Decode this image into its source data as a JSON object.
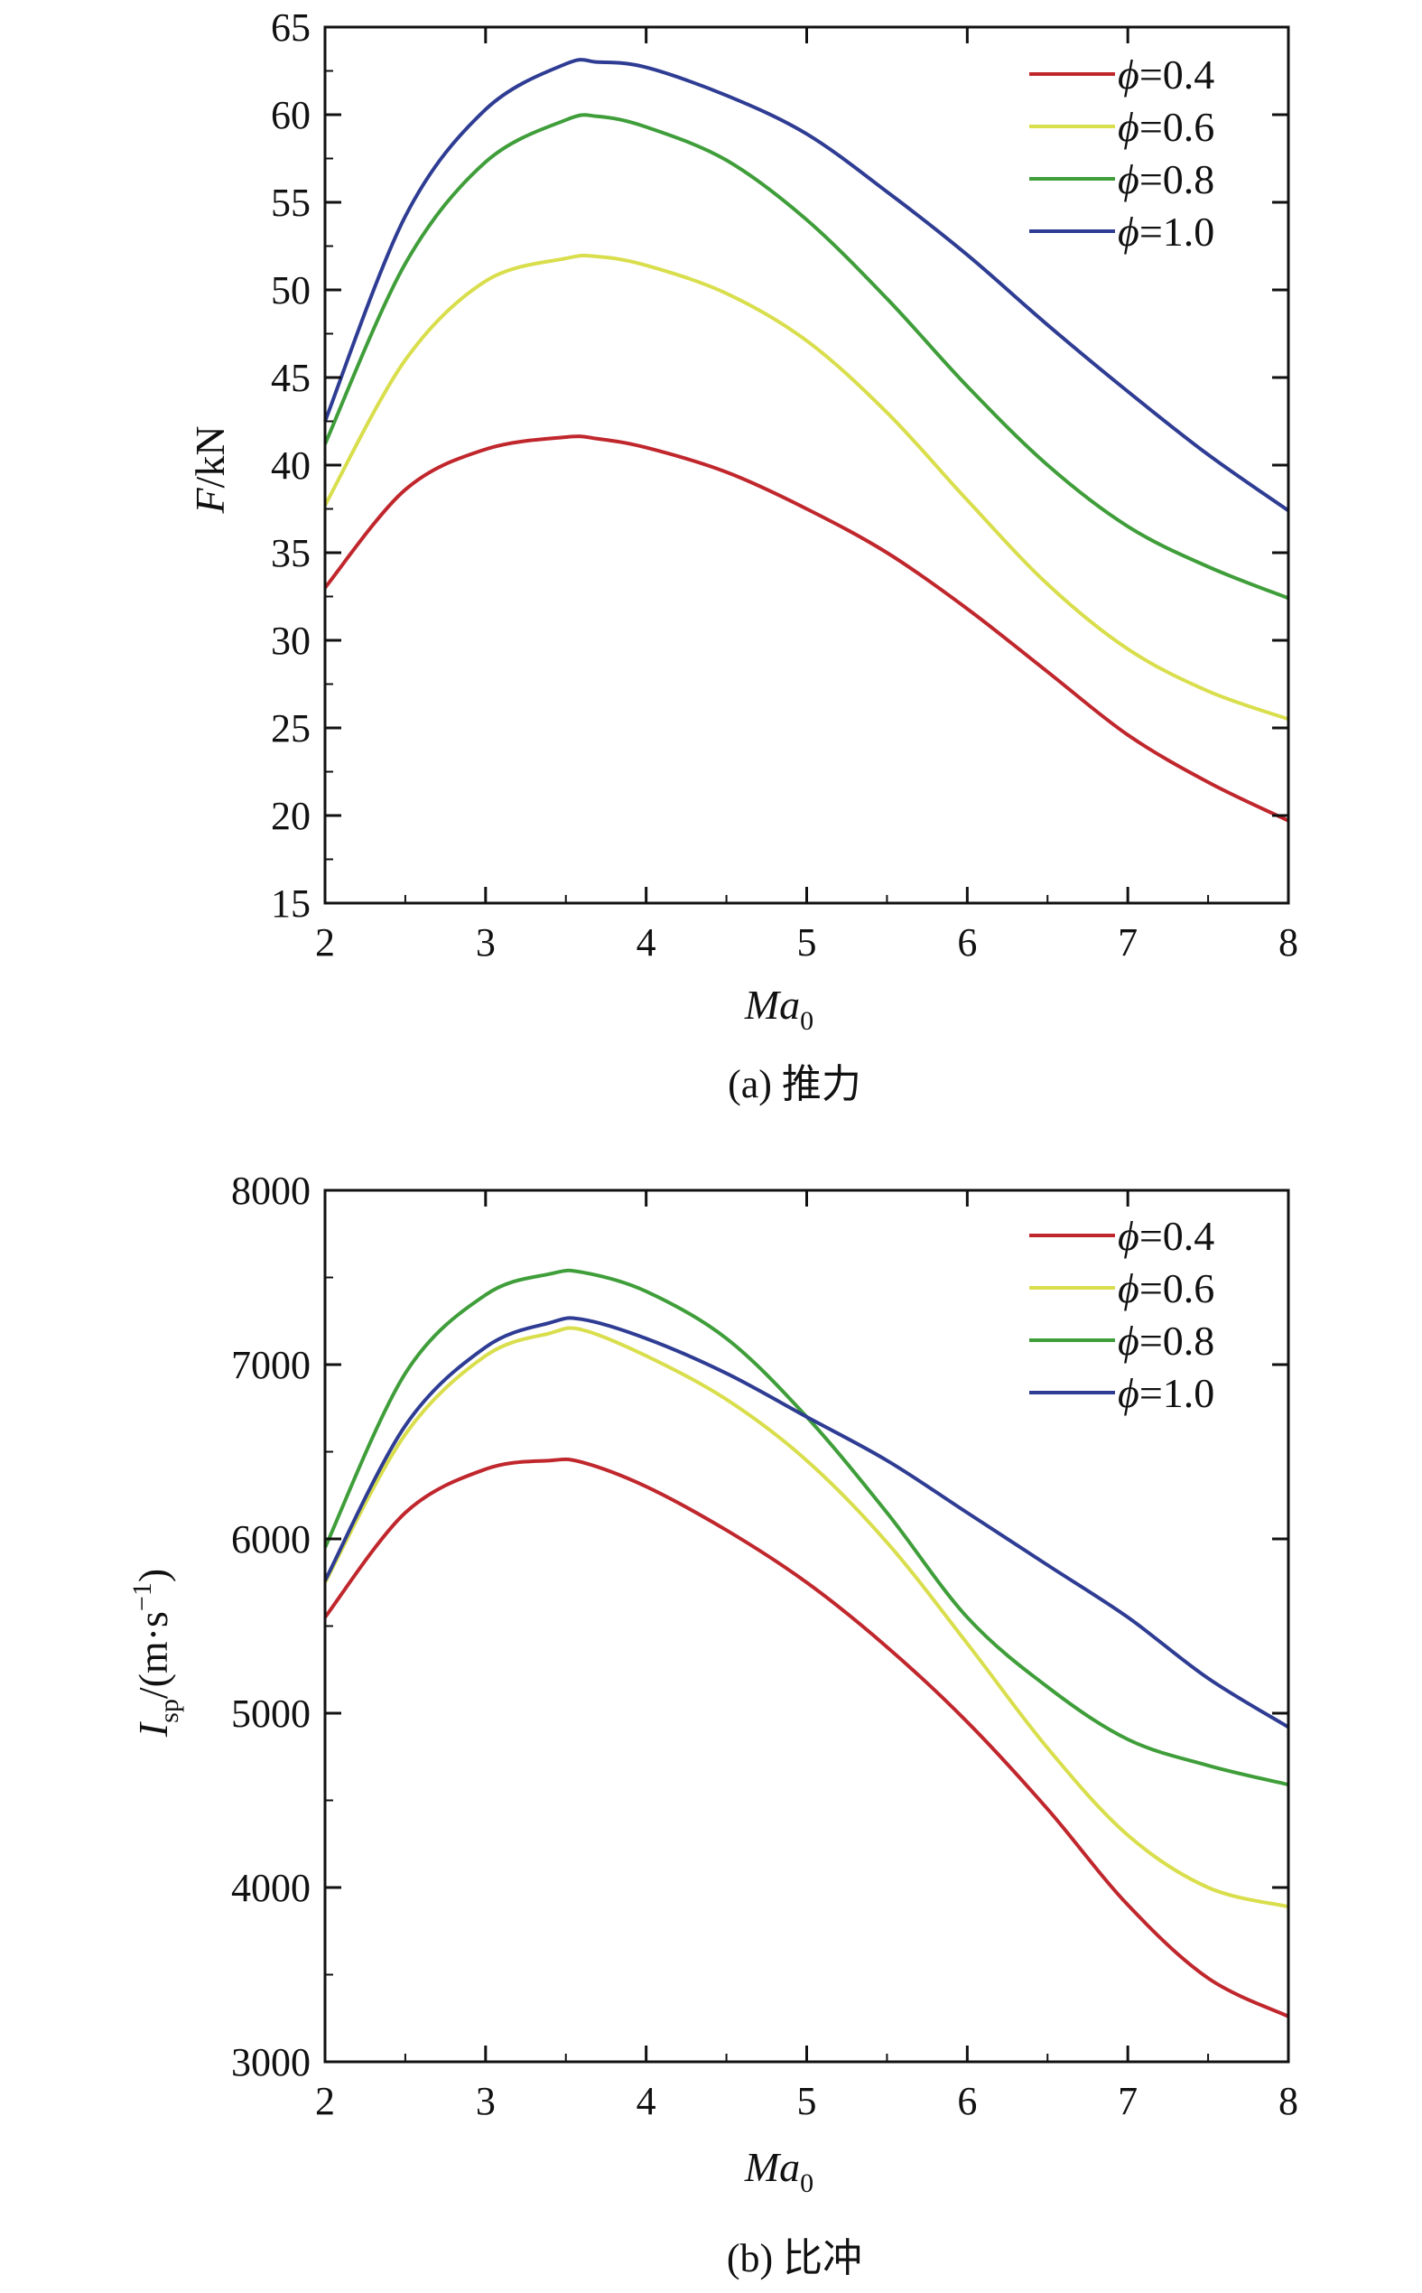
{
  "chart_data": [
    {
      "type": "line",
      "caption": "(a) 推力",
      "xlabel": "Ma",
      "xlabel_sub": "0",
      "ylabel": "F",
      "ylabel_suffix": "/kN",
      "xlim": [
        2,
        8
      ],
      "ylim": [
        15,
        65
      ],
      "xticks": [
        "2",
        "3",
        "4",
        "5",
        "6",
        "7",
        "8"
      ],
      "yticks": [
        "15",
        "20",
        "25",
        "30",
        "35",
        "40",
        "45",
        "50",
        "55",
        "60",
        "65"
      ],
      "legend_position": "top-right",
      "x": [
        2,
        2.5,
        3,
        3.5,
        3.7,
        4,
        4.5,
        5,
        5.5,
        6,
        6.5,
        7,
        7.5,
        8
      ],
      "series": [
        {
          "name": "ϕ=0.4",
          "color": "#c0272d",
          "values": [
            33.0,
            38.6,
            40.9,
            41.6,
            41.5,
            41.0,
            39.6,
            37.5,
            35.0,
            31.8,
            28.2,
            24.6,
            21.9,
            19.7
          ]
        },
        {
          "name": "ϕ=0.6",
          "color": "#d9de4c",
          "values": [
            37.7,
            46.0,
            50.5,
            51.8,
            51.9,
            51.4,
            49.8,
            47.1,
            43.0,
            38.0,
            33.2,
            29.5,
            27.1,
            25.5
          ]
        },
        {
          "name": "ϕ=0.8",
          "color": "#3f9e3a",
          "values": [
            41.2,
            51.5,
            57.3,
            59.7,
            59.9,
            59.3,
            57.4,
            54.0,
            49.5,
            44.5,
            40.0,
            36.5,
            34.2,
            32.4
          ]
        },
        {
          "name": "ϕ=1.0",
          "color": "#2e3c93",
          "values": [
            42.5,
            54.2,
            60.3,
            62.9,
            63.0,
            62.7,
            61.1,
            58.9,
            55.6,
            52.0,
            48.0,
            44.2,
            40.6,
            37.4
          ]
        }
      ]
    },
    {
      "type": "line",
      "caption": "(b) 比冲",
      "xlabel": "Ma",
      "xlabel_sub": "0",
      "ylabel": "I",
      "ylabel_sub": "sp",
      "ylabel_suffix": "/(m·s",
      "ylabel_sup": "−1",
      "ylabel_close": ")",
      "xlim": [
        2,
        8
      ],
      "ylim": [
        3000,
        8000
      ],
      "xticks": [
        "2",
        "3",
        "4",
        "5",
        "6",
        "7",
        "8"
      ],
      "yticks": [
        "3000",
        "4000",
        "5000",
        "6000",
        "7000",
        "8000"
      ],
      "legend_position": "top-right",
      "x": [
        2,
        2.5,
        3,
        3.4,
        3.6,
        4,
        4.5,
        5,
        5.5,
        6,
        6.5,
        7,
        7.5,
        8
      ],
      "series": [
        {
          "name": "ϕ=0.4",
          "color": "#c0272d",
          "values": [
            5550,
            6150,
            6400,
            6450,
            6440,
            6300,
            6050,
            5750,
            5380,
            4950,
            4450,
            3900,
            3480,
            3260
          ]
        },
        {
          "name": "ϕ=0.6",
          "color": "#d9de4c",
          "values": [
            5750,
            6600,
            7050,
            7180,
            7200,
            7050,
            6800,
            6450,
            5980,
            5400,
            4800,
            4300,
            4000,
            3890
          ]
        },
        {
          "name": "ϕ=0.8",
          "color": "#3f9e3a",
          "values": [
            5950,
            6950,
            7400,
            7520,
            7530,
            7420,
            7150,
            6700,
            6150,
            5550,
            5150,
            4850,
            4700,
            4590
          ]
        },
        {
          "name": "ϕ=1.0",
          "color": "#2e3c93",
          "values": [
            5760,
            6650,
            7100,
            7240,
            7260,
            7150,
            6950,
            6700,
            6450,
            6150,
            5850,
            5550,
            5200,
            4920
          ]
        }
      ]
    }
  ]
}
